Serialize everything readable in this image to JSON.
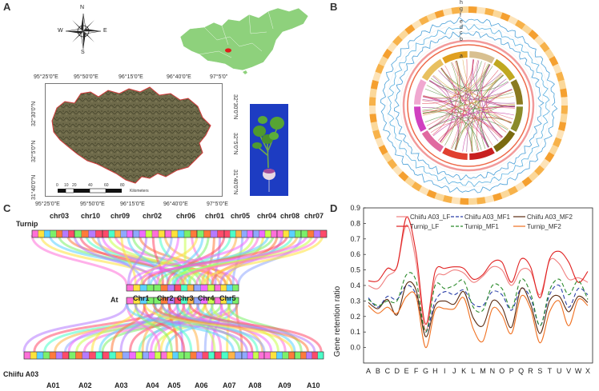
{
  "panelA": {
    "letter": "A",
    "compass": {
      "n": "N",
      "s": "S",
      "e": "E",
      "w": "W"
    },
    "top_ticks": [
      "95°25'0\"E",
      "95°50'0\"E",
      "96°15'0\"E",
      "96°40'0\"E",
      "97°5'0\""
    ],
    "bottom_ticks": [
      "95°25'0\"E",
      "95°50'0\"E",
      "96°15'0\"E",
      "96°40'0\"E",
      "97°5'0\"E"
    ],
    "left_ticks": [
      "32°30'0\"N",
      "32°5'0\"N",
      "31°40'0\"N"
    ],
    "right_ticks": [
      "32°30'0\"N",
      "32°5'0\"N",
      "31°40'0\"N"
    ],
    "scale_numbers": [
      "0",
      "10",
      "20",
      "40",
      "60",
      "80"
    ],
    "scale_unit": "Kilometers"
  },
  "panelB": {
    "letter": "B",
    "ring_labels": [
      "h",
      "g",
      "f",
      "e",
      "d",
      "c",
      "b",
      "a"
    ]
  },
  "panelC": {
    "letter": "C",
    "turnip_label": "Turnip",
    "turnip_chrs": [
      "chr03",
      "chr10",
      "chr09",
      "chr02",
      "chr06",
      "chr01",
      "chr05",
      "chr04",
      "chr08",
      "chr07"
    ],
    "at_label": "At",
    "at_chrs": [
      "Chr1",
      "Chr2",
      "Chr3",
      "Chr4",
      "Chr5"
    ],
    "a03_label": "Chiifu A03",
    "a03_chrs": [
      "A01",
      "A02",
      "A03",
      "A04",
      "A05",
      "A06",
      "A07",
      "A08",
      "A09",
      "A10"
    ]
  },
  "panelD": {
    "letter": "D"
  },
  "chart_data": {
    "type": "line",
    "title": "",
    "xlabel": "",
    "ylabel": "Gene retention ratio",
    "ylim": [
      -0.1,
      0.9
    ],
    "yticks": [
      "0.9",
      "0.8",
      "0.7",
      "0.6",
      "0.5",
      "0.4",
      "0.3",
      "0.2",
      "0.1",
      "0.0"
    ],
    "categories": [
      "A",
      "B",
      "C",
      "D",
      "E",
      "F",
      "G",
      "H",
      "I",
      "J",
      "K",
      "L",
      "M",
      "N",
      "O",
      "P",
      "Q",
      "R",
      "S",
      "T",
      "U",
      "V",
      "W",
      "X"
    ],
    "legend": [
      {
        "name": "Chiifu A03_LF",
        "color": "#f08080",
        "dash": "solid"
      },
      {
        "name": "Chiifu A03_MF1",
        "color": "#2a3fa8",
        "dash": "dash"
      },
      {
        "name": "Chiifu A03_MF2",
        "color": "#5a2a10",
        "dash": "solid"
      },
      {
        "name": "Turnip_LF",
        "color": "#e02020",
        "dash": "solid"
      },
      {
        "name": "Turnip_MF1",
        "color": "#2a8a2a",
        "dash": "dash"
      },
      {
        "name": "Turnip_MF2",
        "color": "#f07020",
        "dash": "solid"
      }
    ],
    "series": [
      {
        "name": "Chiifu A03_LF",
        "values": [
          0.4,
          0.38,
          0.46,
          0.52,
          0.79,
          0.55,
          0.11,
          0.44,
          0.47,
          0.5,
          0.48,
          0.42,
          0.46,
          0.52,
          0.5,
          0.4,
          0.5,
          0.49,
          0.34,
          0.56,
          0.54,
          0.44,
          0.45,
          0.42
        ]
      },
      {
        "name": "Chiifu A03_MF1",
        "values": [
          0.32,
          0.26,
          0.33,
          0.31,
          0.4,
          0.34,
          0.1,
          0.3,
          0.36,
          0.34,
          0.37,
          0.28,
          0.27,
          0.36,
          0.34,
          0.24,
          0.38,
          0.32,
          0.14,
          0.34,
          0.4,
          0.26,
          0.38,
          0.34
        ]
      },
      {
        "name": "Chiifu A03_MF2",
        "values": [
          0.29,
          0.25,
          0.31,
          0.21,
          0.41,
          0.37,
          0.07,
          0.27,
          0.3,
          0.28,
          0.36,
          0.19,
          0.14,
          0.3,
          0.26,
          0.13,
          0.38,
          0.28,
          0.09,
          0.3,
          0.33,
          0.23,
          0.33,
          0.29
        ]
      },
      {
        "name": "Turnip_LF",
        "values": [
          0.43,
          0.43,
          0.51,
          0.52,
          0.84,
          0.61,
          0.15,
          0.49,
          0.51,
          0.52,
          0.51,
          0.44,
          0.47,
          0.55,
          0.55,
          0.42,
          0.57,
          0.52,
          0.32,
          0.57,
          0.62,
          0.55,
          0.42,
          0.49
        ]
      },
      {
        "name": "Turnip_MF1",
        "values": [
          0.31,
          0.27,
          0.3,
          0.3,
          0.47,
          0.43,
          0.1,
          0.4,
          0.38,
          0.4,
          0.43,
          0.26,
          0.24,
          0.4,
          0.38,
          0.25,
          0.44,
          0.35,
          0.14,
          0.37,
          0.44,
          0.34,
          0.43,
          0.31
        ]
      },
      {
        "name": "Turnip_MF2",
        "values": [
          0.27,
          0.22,
          0.26,
          0.22,
          0.33,
          0.33,
          0.0,
          0.24,
          0.25,
          0.25,
          0.32,
          0.12,
          0.04,
          0.25,
          0.21,
          0.09,
          0.33,
          0.25,
          0.03,
          0.23,
          0.3,
          0.14,
          0.31,
          0.27
        ]
      }
    ]
  }
}
